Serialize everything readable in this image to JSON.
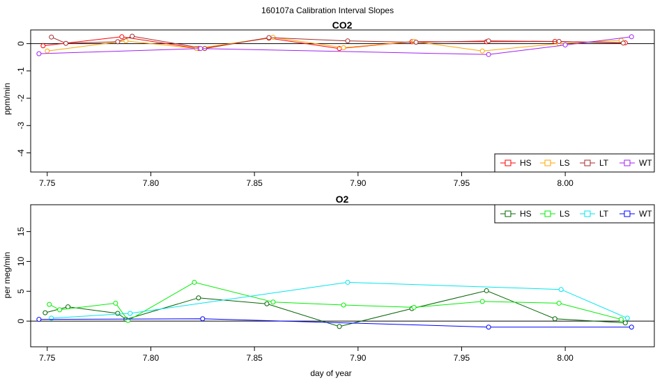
{
  "figure_title": "160107a   Calibration Interval Slopes",
  "chart_data": [
    {
      "type": "line",
      "title": "CO2",
      "xlabel": "",
      "ylabel": "ppm/min",
      "xlim": [
        7.742,
        8.043
      ],
      "ylim": [
        -4.7,
        0.5
      ],
      "xticks": [
        "7.75",
        "7.80",
        "7.85",
        "7.90",
        "7.95",
        "8.00"
      ],
      "xtick_values": [
        7.75,
        7.8,
        7.85,
        7.9,
        7.95,
        8.0
      ],
      "yticks": [
        "-4",
        "-3",
        "-2",
        "-1",
        "0"
      ],
      "ytick_values": [
        -4,
        -3,
        -2,
        -1,
        0
      ],
      "zero_line": true,
      "legend_position": "bottom-right",
      "series": [
        {
          "name": "HS",
          "color": "#ff0000",
          "x": [
            7.748,
            7.786,
            7.823,
            7.857,
            7.891,
            7.926,
            7.962,
            7.995,
            8.029
          ],
          "y": [
            -0.08,
            0.25,
            -0.18,
            0.2,
            -0.18,
            0.07,
            0.07,
            0.08,
            0.03
          ]
        },
        {
          "name": "LS",
          "color": "#ffa500",
          "x": [
            7.75,
            7.788,
            7.822,
            7.859,
            7.893,
            7.927,
            7.96,
            7.997,
            8.027
          ],
          "y": [
            -0.27,
            0.1,
            -0.18,
            0.23,
            -0.15,
            0.08,
            -0.27,
            0.0,
            0.12
          ]
        },
        {
          "name": "LT",
          "color": "#a52a2a",
          "x": [
            7.752,
            7.759,
            7.784,
            7.791,
            7.826,
            7.857,
            7.895,
            7.928,
            7.963,
            7.997,
            8.028
          ],
          "y": [
            0.24,
            0.01,
            0.07,
            0.27,
            -0.18,
            0.22,
            0.1,
            0.05,
            0.1,
            0.08,
            0.02
          ]
        },
        {
          "name": "WT",
          "color": "#a020f0",
          "x": [
            7.746,
            7.824,
            7.963,
            8.0,
            8.032
          ],
          "y": [
            -0.37,
            -0.18,
            -0.4,
            -0.05,
            0.25
          ]
        }
      ]
    },
    {
      "type": "line",
      "title": "O2",
      "xlabel": "day of year",
      "ylabel": "per meg/min",
      "xlim": [
        7.742,
        8.043
      ],
      "ylim": [
        -4.3,
        19.5
      ],
      "xticks": [
        "7.75",
        "7.80",
        "7.85",
        "7.90",
        "7.95",
        "8.00"
      ],
      "xtick_values": [
        7.75,
        7.8,
        7.85,
        7.9,
        7.95,
        8.0
      ],
      "yticks": [
        "0",
        "5",
        "10",
        "15"
      ],
      "ytick_values": [
        0,
        5,
        10,
        15
      ],
      "zero_line": true,
      "legend_position": "top-right",
      "series": [
        {
          "name": "HS",
          "color": "#006400",
          "x": [
            7.749,
            7.76,
            7.784,
            7.788,
            7.823,
            7.856,
            7.891,
            7.926,
            7.962,
            7.995,
            8.029
          ],
          "y": [
            1.4,
            2.4,
            1.3,
            0.3,
            3.9,
            2.9,
            -0.9,
            2.1,
            5.1,
            0.4,
            -0.3
          ]
        },
        {
          "name": "LS",
          "color": "#00ee00",
          "x": [
            7.751,
            7.756,
            7.783,
            7.789,
            7.821,
            7.859,
            7.893,
            7.927,
            7.96,
            7.997,
            8.027
          ],
          "y": [
            2.8,
            1.9,
            3.0,
            0.1,
            6.5,
            3.2,
            2.7,
            2.3,
            3.3,
            3.0,
            0.3
          ]
        },
        {
          "name": "LT",
          "color": "#00e5ee",
          "x": [
            7.752,
            7.79,
            7.895,
            7.998,
            8.03
          ],
          "y": [
            0.5,
            1.3,
            6.5,
            5.3,
            0.5
          ]
        },
        {
          "name": "WT",
          "color": "#0000ff",
          "x": [
            7.746,
            7.825,
            7.963,
            8.032
          ],
          "y": [
            0.3,
            0.4,
            -1.0,
            -1.0
          ]
        }
      ]
    }
  ]
}
